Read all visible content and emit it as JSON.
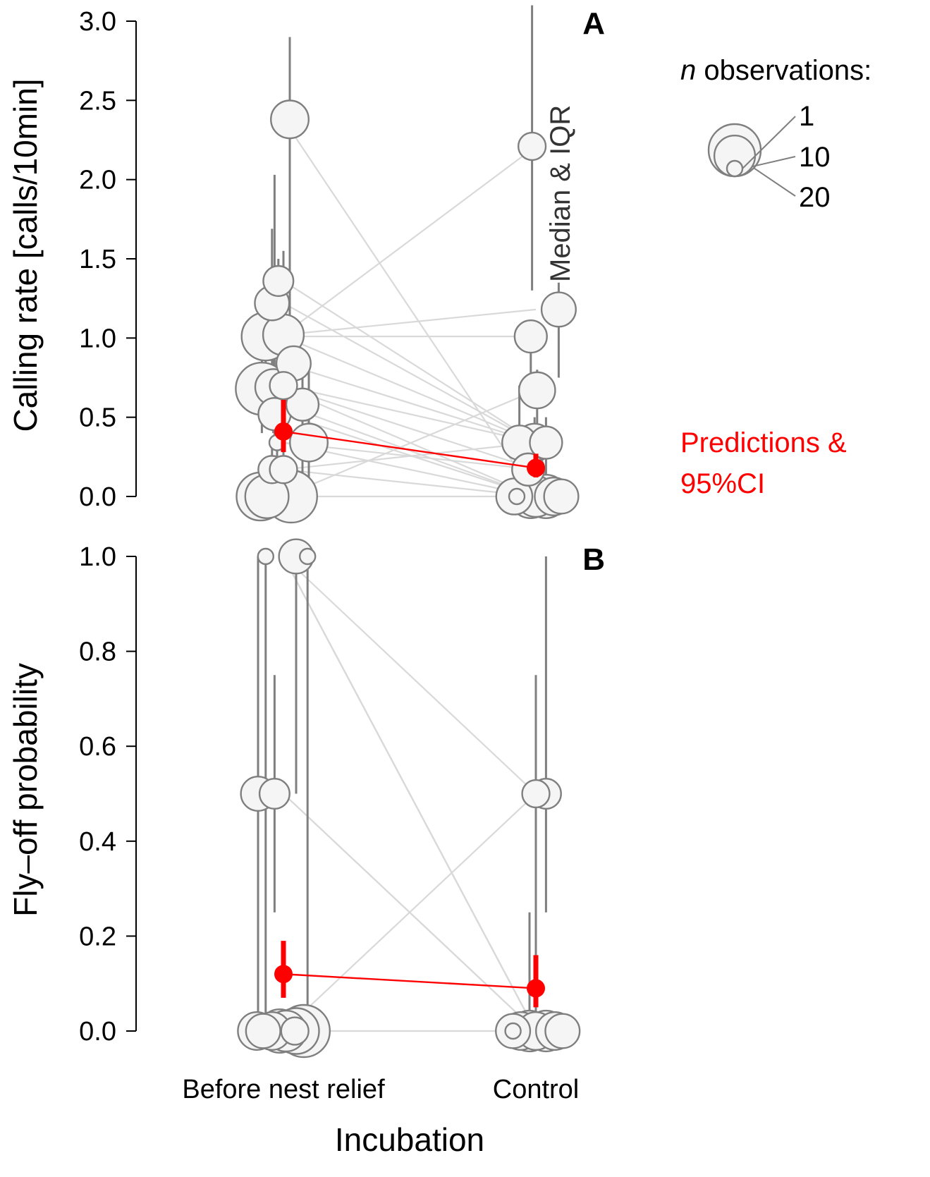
{
  "chart_data": [
    {
      "panel": "A",
      "type": "scatter",
      "ylabel": "Calling rate [calls/10min]",
      "xlabel": "",
      "categories": [
        "Before nest relief",
        "Control"
      ],
      "ylim": [
        0,
        3.0
      ],
      "yticks": [
        0.0,
        0.5,
        1.0,
        1.5,
        2.0,
        2.5,
        3.0
      ],
      "ytick_labels": [
        "0.0",
        "0.5",
        "1.0",
        "1.5",
        "2.0",
        "2.5",
        "3.0"
      ],
      "median_iqr_label": "Median & IQR",
      "colors": {
        "point_fill": "#f5f5f5",
        "point_stroke": "#7f7f7f",
        "iqr": "#7f7f7f",
        "pairs": "#d9d9d9",
        "prediction": "#ff0000"
      },
      "points": [
        {
          "group": 0,
          "dx": 0.05,
          "y": 2.38,
          "n": 8,
          "lo": 1.1,
          "hi": 2.9
        },
        {
          "group": 0,
          "dx": -0.04,
          "y": 1.36,
          "n": 4,
          "lo": 0.9,
          "hi": 1.5
        },
        {
          "group": 0,
          "dx": -0.09,
          "y": 1.22,
          "n": 6,
          "lo": 0.5,
          "hi": 1.69
        },
        {
          "group": 0,
          "dx": -0.14,
          "y": 1.01,
          "n": 16,
          "lo": 0.5,
          "hi": 1.3
        },
        {
          "group": 0,
          "dx": 0.0,
          "y": 1.02,
          "n": 10,
          "lo": 0.3,
          "hi": 1.55
        },
        {
          "group": 0,
          "dx": 0.08,
          "y": 0.84,
          "n": 6,
          "lo": 0.6,
          "hi": 1.0
        },
        {
          "group": 0,
          "dx": -0.17,
          "y": 0.68,
          "n": 20,
          "lo": 0.4,
          "hi": 0.9
        },
        {
          "group": 0,
          "dx": -0.08,
          "y": 0.69,
          "n": 7,
          "lo": 0.4,
          "hi": 1.0
        },
        {
          "group": 0,
          "dx": 0.0,
          "y": 0.7,
          "n": 3,
          "lo": 0.5,
          "hi": 0.9
        },
        {
          "group": 0,
          "dx": -0.07,
          "y": 0.52,
          "n": 5,
          "lo": 0.3,
          "hi": 2.03
        },
        {
          "group": 0,
          "dx": 0.15,
          "y": 0.58,
          "n": 5,
          "lo": 0.0,
          "hi": 0.85
        },
        {
          "group": 0,
          "dx": 0.2,
          "y": 0.34,
          "n": 8,
          "lo": 0.0,
          "hi": 0.8
        },
        {
          "group": 0,
          "dx": -0.05,
          "y": 0.34,
          "n": 1,
          "lo": 0.2,
          "hi": 0.5
        },
        {
          "group": 0,
          "dx": -0.09,
          "y": 0.17,
          "n": 3,
          "lo": 0.0,
          "hi": 0.3
        },
        {
          "group": 0,
          "dx": 0.0,
          "y": 0.17,
          "n": 3,
          "lo": 0.0,
          "hi": 0.3
        },
        {
          "group": 0,
          "dx": -0.18,
          "y": 0.0,
          "n": 16,
          "lo": 0.0,
          "hi": 0.0
        },
        {
          "group": 0,
          "dx": -0.13,
          "y": 0.0,
          "n": 12,
          "lo": 0.0,
          "hi": 0.0
        },
        {
          "group": 0,
          "dx": 0.06,
          "y": 0.0,
          "n": 20,
          "lo": 0.0,
          "hi": 0.0
        },
        {
          "group": 1,
          "dx": -0.03,
          "y": 2.21,
          "n": 3,
          "lo": 1.3,
          "hi": 3.1
        },
        {
          "group": 1,
          "dx": 0.18,
          "y": 1.18,
          "n": 6,
          "lo": 0.75,
          "hi": 1.35
        },
        {
          "group": 1,
          "dx": -0.04,
          "y": 1.01,
          "n": 5,
          "lo": 0.6,
          "hi": 1.1
        },
        {
          "group": 1,
          "dx": 0.01,
          "y": 0.67,
          "n": 7,
          "lo": 0.4,
          "hi": 0.8
        },
        {
          "group": 1,
          "dx": -0.13,
          "y": 0.34,
          "n": 6,
          "lo": 0.0,
          "hi": 0.7
        },
        {
          "group": 1,
          "dx": -0.01,
          "y": 0.34,
          "n": 8,
          "lo": 0.0,
          "hi": 0.5
        },
        {
          "group": 1,
          "dx": 0.08,
          "y": 0.34,
          "n": 5,
          "lo": 0.0,
          "hi": 0.5
        },
        {
          "group": 1,
          "dx": -0.06,
          "y": 0.17,
          "n": 5,
          "lo": 0.0,
          "hi": 0.3
        },
        {
          "group": 1,
          "dx": -0.17,
          "y": 0.0,
          "n": 7,
          "lo": 0.0,
          "hi": 0.0
        },
        {
          "group": 1,
          "dx": -0.15,
          "y": 0.0,
          "n": 1,
          "lo": 0.0,
          "hi": 0.0
        },
        {
          "group": 1,
          "dx": -0.04,
          "y": 0.0,
          "n": 12,
          "lo": 0.0,
          "hi": 0.0
        },
        {
          "group": 1,
          "dx": 0.0,
          "y": 0.0,
          "n": 10,
          "lo": 0.0,
          "hi": 0.0
        },
        {
          "group": 1,
          "dx": 0.08,
          "y": 0.0,
          "n": 12,
          "lo": 0.0,
          "hi": 0.0
        },
        {
          "group": 1,
          "dx": 0.14,
          "y": 0.0,
          "n": 8,
          "lo": 0.0,
          "hi": 0.0
        },
        {
          "group": 1,
          "dx": 0.2,
          "y": 0.0,
          "n": 6,
          "lo": 0.0,
          "hi": 0.0
        }
      ],
      "pairs": [
        [
          2.38,
          0.0
        ],
        [
          1.36,
          0.34
        ],
        [
          1.22,
          0.34
        ],
        [
          1.01,
          0.34
        ],
        [
          1.02,
          2.21
        ],
        [
          1.02,
          1.18
        ],
        [
          1.01,
          1.01
        ],
        [
          0.84,
          0.34
        ],
        [
          0.68,
          0.0
        ],
        [
          0.69,
          0.17
        ],
        [
          0.7,
          0.34
        ],
        [
          0.52,
          0.0
        ],
        [
          0.58,
          0.0
        ],
        [
          0.34,
          0.0
        ],
        [
          0.34,
          0.17
        ],
        [
          0.17,
          0.0
        ],
        [
          0.17,
          0.34
        ],
        [
          0.0,
          0.0
        ],
        [
          0.0,
          0.67
        ]
      ],
      "prediction": {
        "values": [
          0.41,
          0.18
        ],
        "ci_low": [
          0.28,
          0.12
        ],
        "ci_high": [
          0.61,
          0.27
        ]
      }
    },
    {
      "panel": "B",
      "type": "scatter",
      "ylabel": "Fly–off probability",
      "xlabel": "Incubation",
      "categories": [
        "Before nest relief",
        "Control"
      ],
      "ylim": [
        0,
        1.0
      ],
      "yticks": [
        0.0,
        0.2,
        0.4,
        0.6,
        0.8,
        1.0
      ],
      "ytick_labels": [
        "0.0",
        "0.2",
        "0.4",
        "0.6",
        "0.8",
        "1.0"
      ],
      "colors": {
        "point_fill": "#f5f5f5",
        "point_stroke": "#7f7f7f",
        "iqr": "#7f7f7f",
        "pairs": "#d9d9d9",
        "prediction": "#ff0000"
      },
      "points": [
        {
          "group": 0,
          "dx": -0.14,
          "y": 1.0,
          "n": 1,
          "lo": 0.0,
          "hi": 1.0
        },
        {
          "group": 0,
          "dx": 0.1,
          "y": 1.0,
          "n": 6,
          "lo": 0.5,
          "hi": 1.0
        },
        {
          "group": 0,
          "dx": 0.19,
          "y": 1.0,
          "n": 1,
          "lo": 0.0,
          "hi": 1.0
        },
        {
          "group": 0,
          "dx": -0.2,
          "y": 0.5,
          "n": 6,
          "lo": 0.0,
          "hi": 1.0
        },
        {
          "group": 0,
          "dx": -0.07,
          "y": 0.5,
          "n": 4,
          "lo": 0.25,
          "hi": 0.75
        },
        {
          "group": 0,
          "dx": -0.21,
          "y": 0.0,
          "n": 8,
          "lo": 0.0,
          "hi": 0.0
        },
        {
          "group": 0,
          "dx": -0.16,
          "y": 0.0,
          "n": 6,
          "lo": 0.0,
          "hi": 0.0
        },
        {
          "group": 0,
          "dx": -0.09,
          "y": 0.0,
          "n": 8,
          "lo": 0.0,
          "hi": 0.0
        },
        {
          "group": 0,
          "dx": -0.03,
          "y": 0.0,
          "n": 12,
          "lo": 0.0,
          "hi": 0.0
        },
        {
          "group": 0,
          "dx": 0.02,
          "y": 0.0,
          "n": 10,
          "lo": 0.0,
          "hi": 0.0
        },
        {
          "group": 0,
          "dx": 0.1,
          "y": 0.0,
          "n": 14,
          "lo": 0.0,
          "hi": 0.0
        },
        {
          "group": 0,
          "dx": 0.16,
          "y": 0.0,
          "n": 20,
          "lo": 0.0,
          "hi": 0.0
        },
        {
          "group": 0,
          "dx": 0.09,
          "y": 0.0,
          "n": 3,
          "lo": 0.0,
          "hi": 0.0
        },
        {
          "group": 1,
          "dx": 0.0,
          "y": 0.5,
          "n": 3,
          "lo": 0.0,
          "hi": 0.75
        },
        {
          "group": 1,
          "dx": 0.08,
          "y": 0.5,
          "n": 4,
          "lo": 0.25,
          "hi": 1.0
        },
        {
          "group": 1,
          "dx": -0.18,
          "y": 0.0,
          "n": 6,
          "lo": 0.0,
          "hi": 0.0
        },
        {
          "group": 1,
          "dx": -0.12,
          "y": 0.0,
          "n": 8,
          "lo": 0.0,
          "hi": 0.0
        },
        {
          "group": 1,
          "dx": -0.18,
          "y": 0.0,
          "n": 1,
          "lo": 0.0,
          "hi": 0.0
        },
        {
          "group": 1,
          "dx": -0.05,
          "y": 0.0,
          "n": 10,
          "lo": 0.0,
          "hi": 0.25
        },
        {
          "group": 1,
          "dx": 0.0,
          "y": 0.0,
          "n": 8,
          "lo": 0.0,
          "hi": 0.0
        },
        {
          "group": 1,
          "dx": 0.08,
          "y": 0.0,
          "n": 10,
          "lo": 0.0,
          "hi": 0.0
        },
        {
          "group": 1,
          "dx": 0.15,
          "y": 0.0,
          "n": 8,
          "lo": 0.0,
          "hi": 0.0
        },
        {
          "group": 1,
          "dx": 0.21,
          "y": 0.0,
          "n": 6,
          "lo": 0.0,
          "hi": 0.0
        }
      ],
      "pairs": [
        [
          1.0,
          0.0
        ],
        [
          1.0,
          0.5
        ],
        [
          1.0,
          0.0
        ],
        [
          1.0,
          0.0
        ],
        [
          0.5,
          0.0
        ],
        [
          0.5,
          0.0
        ],
        [
          0.0,
          0.5
        ],
        [
          0.0,
          0.0
        ]
      ],
      "prediction": {
        "values": [
          0.12,
          0.09
        ],
        "ci_low": [
          0.07,
          0.05
        ],
        "ci_high": [
          0.19,
          0.16
        ]
      }
    }
  ],
  "legend": {
    "title_italic": "n",
    "title_rest": " observations:",
    "entries": [
      {
        "n": 1,
        "label": "1"
      },
      {
        "n": 10,
        "label": "10"
      },
      {
        "n": 20,
        "label": "20"
      }
    ]
  },
  "predictions_label": {
    "line1": "Predictions &",
    "line2": "95%CI"
  }
}
